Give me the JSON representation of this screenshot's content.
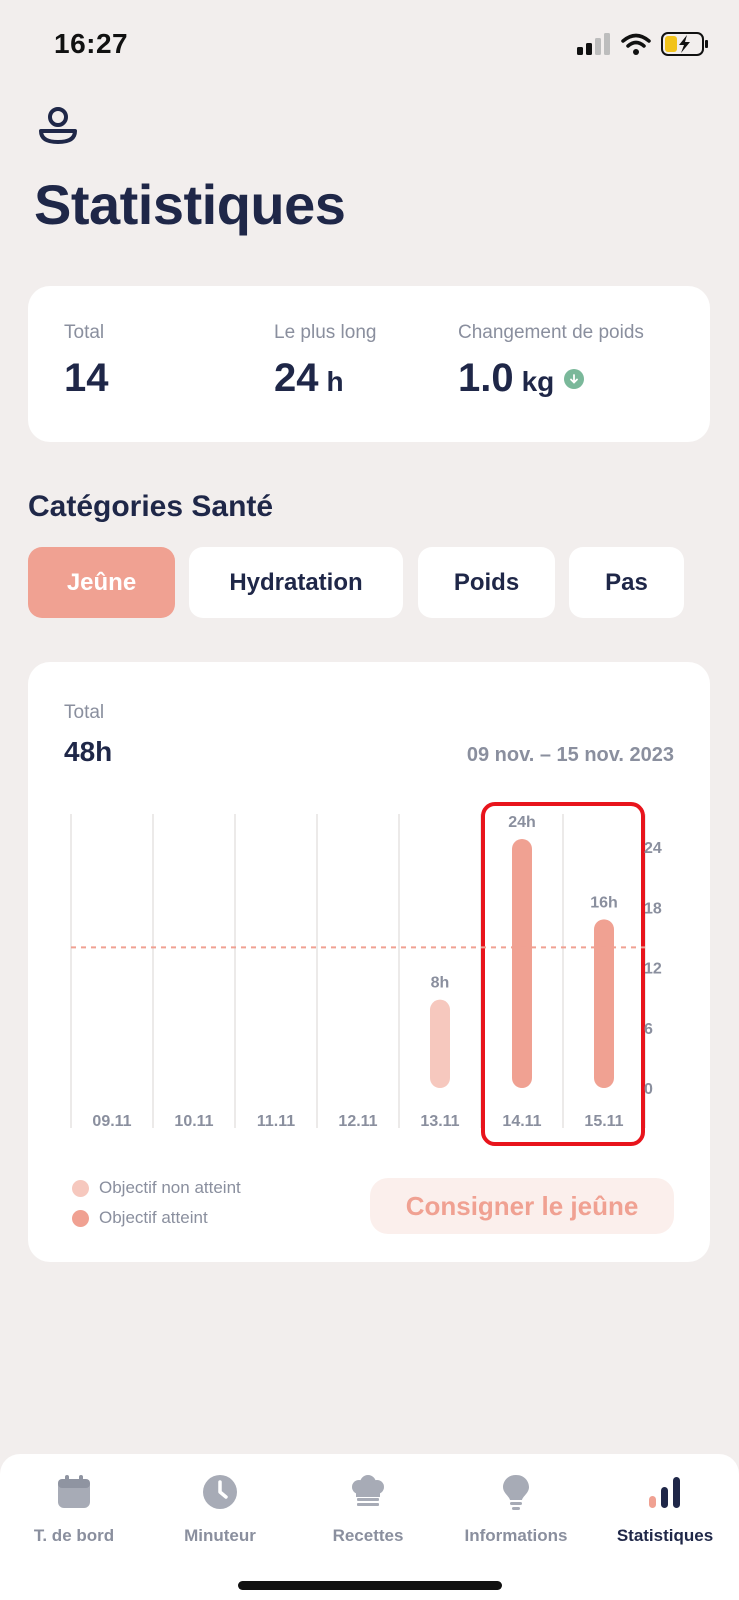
{
  "status_bar": {
    "time": "16:27"
  },
  "page": {
    "title": "Statistiques"
  },
  "summary": {
    "total": {
      "label": "Total",
      "value": "14"
    },
    "longest": {
      "label": "Le plus long",
      "value": "24",
      "unit": "h"
    },
    "weight_change": {
      "label": "Changement de poids",
      "value": "1.0",
      "unit": "kg",
      "trend_icon": "arrow-down-icon"
    }
  },
  "categories": {
    "title": "Catégories Santé",
    "tabs": [
      {
        "label": "Jeûne",
        "active": true
      },
      {
        "label": "Hydratation",
        "active": false
      },
      {
        "label": "Poids",
        "active": false
      },
      {
        "label": "Pas",
        "active": false
      }
    ]
  },
  "chart_card": {
    "total_label": "Total",
    "total_value": "48h",
    "date_range": "09 nov. – 15 nov. 2023",
    "legend": [
      {
        "label": "Objectif non atteint",
        "color": "#f6c8be"
      },
      {
        "label": "Objectif atteint",
        "color": "#f0a192"
      }
    ],
    "log_button": "Consigner le jeûne"
  },
  "chart_data": {
    "type": "bar",
    "categories": [
      "09.11",
      "10.11",
      "11.11",
      "12.11",
      "13.11",
      "14.11",
      "15.11"
    ],
    "values": [
      0,
      0,
      0,
      0,
      8,
      24,
      16
    ],
    "value_labels": [
      "",
      "",
      "",
      "",
      "8h",
      "24h",
      "16h"
    ],
    "goal_reached": [
      false,
      false,
      false,
      false,
      false,
      true,
      true
    ],
    "goal_line": 14,
    "yticks": [
      "24",
      "18",
      "12",
      "6",
      "0"
    ],
    "ylim": [
      0,
      24
    ],
    "y_axis_side": "right",
    "highlight_categories": [
      "14.11",
      "15.11"
    ],
    "highlight_color": "#e8141c"
  },
  "colors": {
    "accent": "#f0a192",
    "accent_light": "#f6c8be",
    "title": "#1f2748",
    "muted": "#8a8f9e",
    "background": "#f2eeed",
    "trend_green": "#7ab89a"
  },
  "tabbar": {
    "items": [
      {
        "label": "T. de bord",
        "icon": "calendar-icon",
        "active": false
      },
      {
        "label": "Minuteur",
        "icon": "clock-icon",
        "active": false
      },
      {
        "label": "Recettes",
        "icon": "chef-hat-icon",
        "active": false
      },
      {
        "label": "Informations",
        "icon": "lightbulb-icon",
        "active": false
      },
      {
        "label": "Statistiques",
        "icon": "bar-chart-icon",
        "active": true
      }
    ]
  }
}
